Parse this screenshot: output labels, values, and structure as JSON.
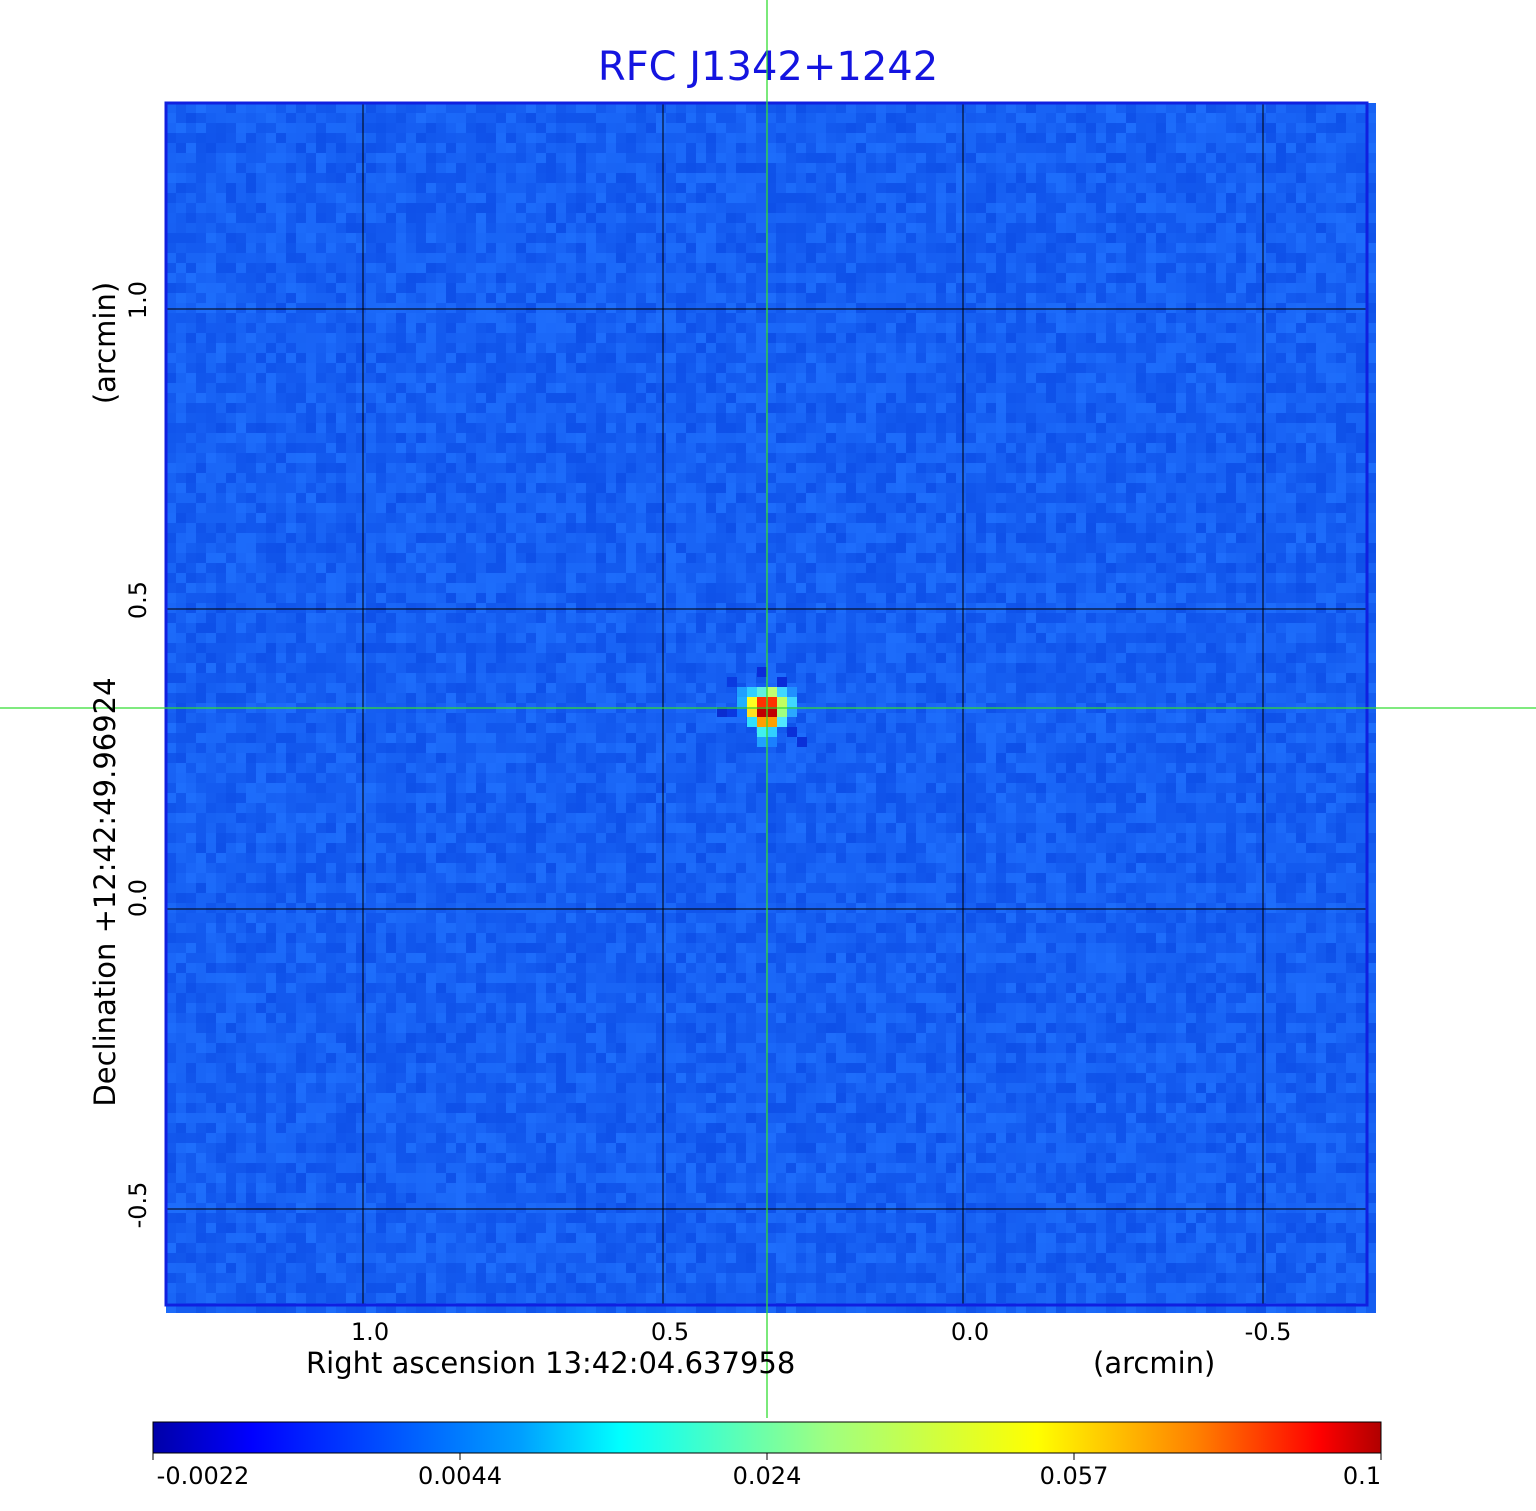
{
  "chart_data": {
    "type": "heatmap",
    "title": "RFC J1342+1242",
    "xlabel": "Right ascension  13:42:04.637958",
    "xunit": "(arcmin)",
    "ylabel": "Declination  +12:42:49.96924",
    "yunit": "(arcmin)",
    "x_ticks": [
      "1.0",
      "0.5",
      "0.0",
      "-0.5"
    ],
    "y_ticks": [
      "1.0",
      "0.5",
      "0.0",
      "-0.5"
    ],
    "xlim": [
      1.33,
      -0.67
    ],
    "ylim": [
      -0.66,
      1.34
    ],
    "grid": true,
    "crosshair": {
      "x": 0.33,
      "y": 0.33,
      "color": "#33dd33"
    },
    "colormap": "jet",
    "colorbar": {
      "ticks": [
        "-0.0022",
        "0.0044",
        "0.024",
        "0.057",
        "0.1"
      ],
      "range": [
        -0.0022,
        0.1
      ],
      "placement": "bottom"
    },
    "peak": {
      "x": 0.33,
      "y": 0.33,
      "value": 0.1
    }
  }
}
